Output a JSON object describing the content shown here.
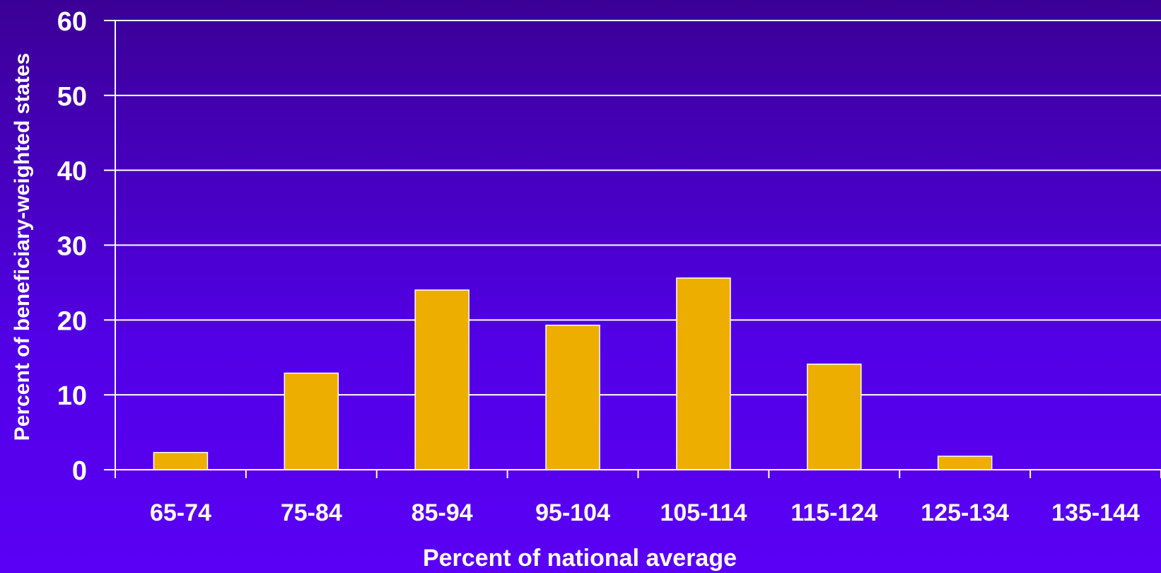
{
  "chart_data": {
    "type": "bar",
    "title": "",
    "xlabel": "Percent of national average",
    "ylabel": "Percent of beneficiary-weighted states",
    "categories": [
      "65-74",
      "75-84",
      "85-94",
      "95-104",
      "105-114",
      "115-124",
      "125-134",
      "135-144"
    ],
    "values": [
      2.3,
      12.9,
      24.0,
      19.3,
      25.6,
      14.1,
      1.8,
      0
    ],
    "ylim": [
      0,
      60
    ],
    "yticks": [
      "0",
      "10",
      "20",
      "30",
      "40",
      "50",
      "60"
    ],
    "grid": true,
    "legend": "none"
  },
  "colors": {
    "bar": "#EDAE00",
    "bar_stroke": "#FFFFFF",
    "grid": "#FFFFFF",
    "axis": "#FFFFFF",
    "text": "#FFFFFF"
  }
}
